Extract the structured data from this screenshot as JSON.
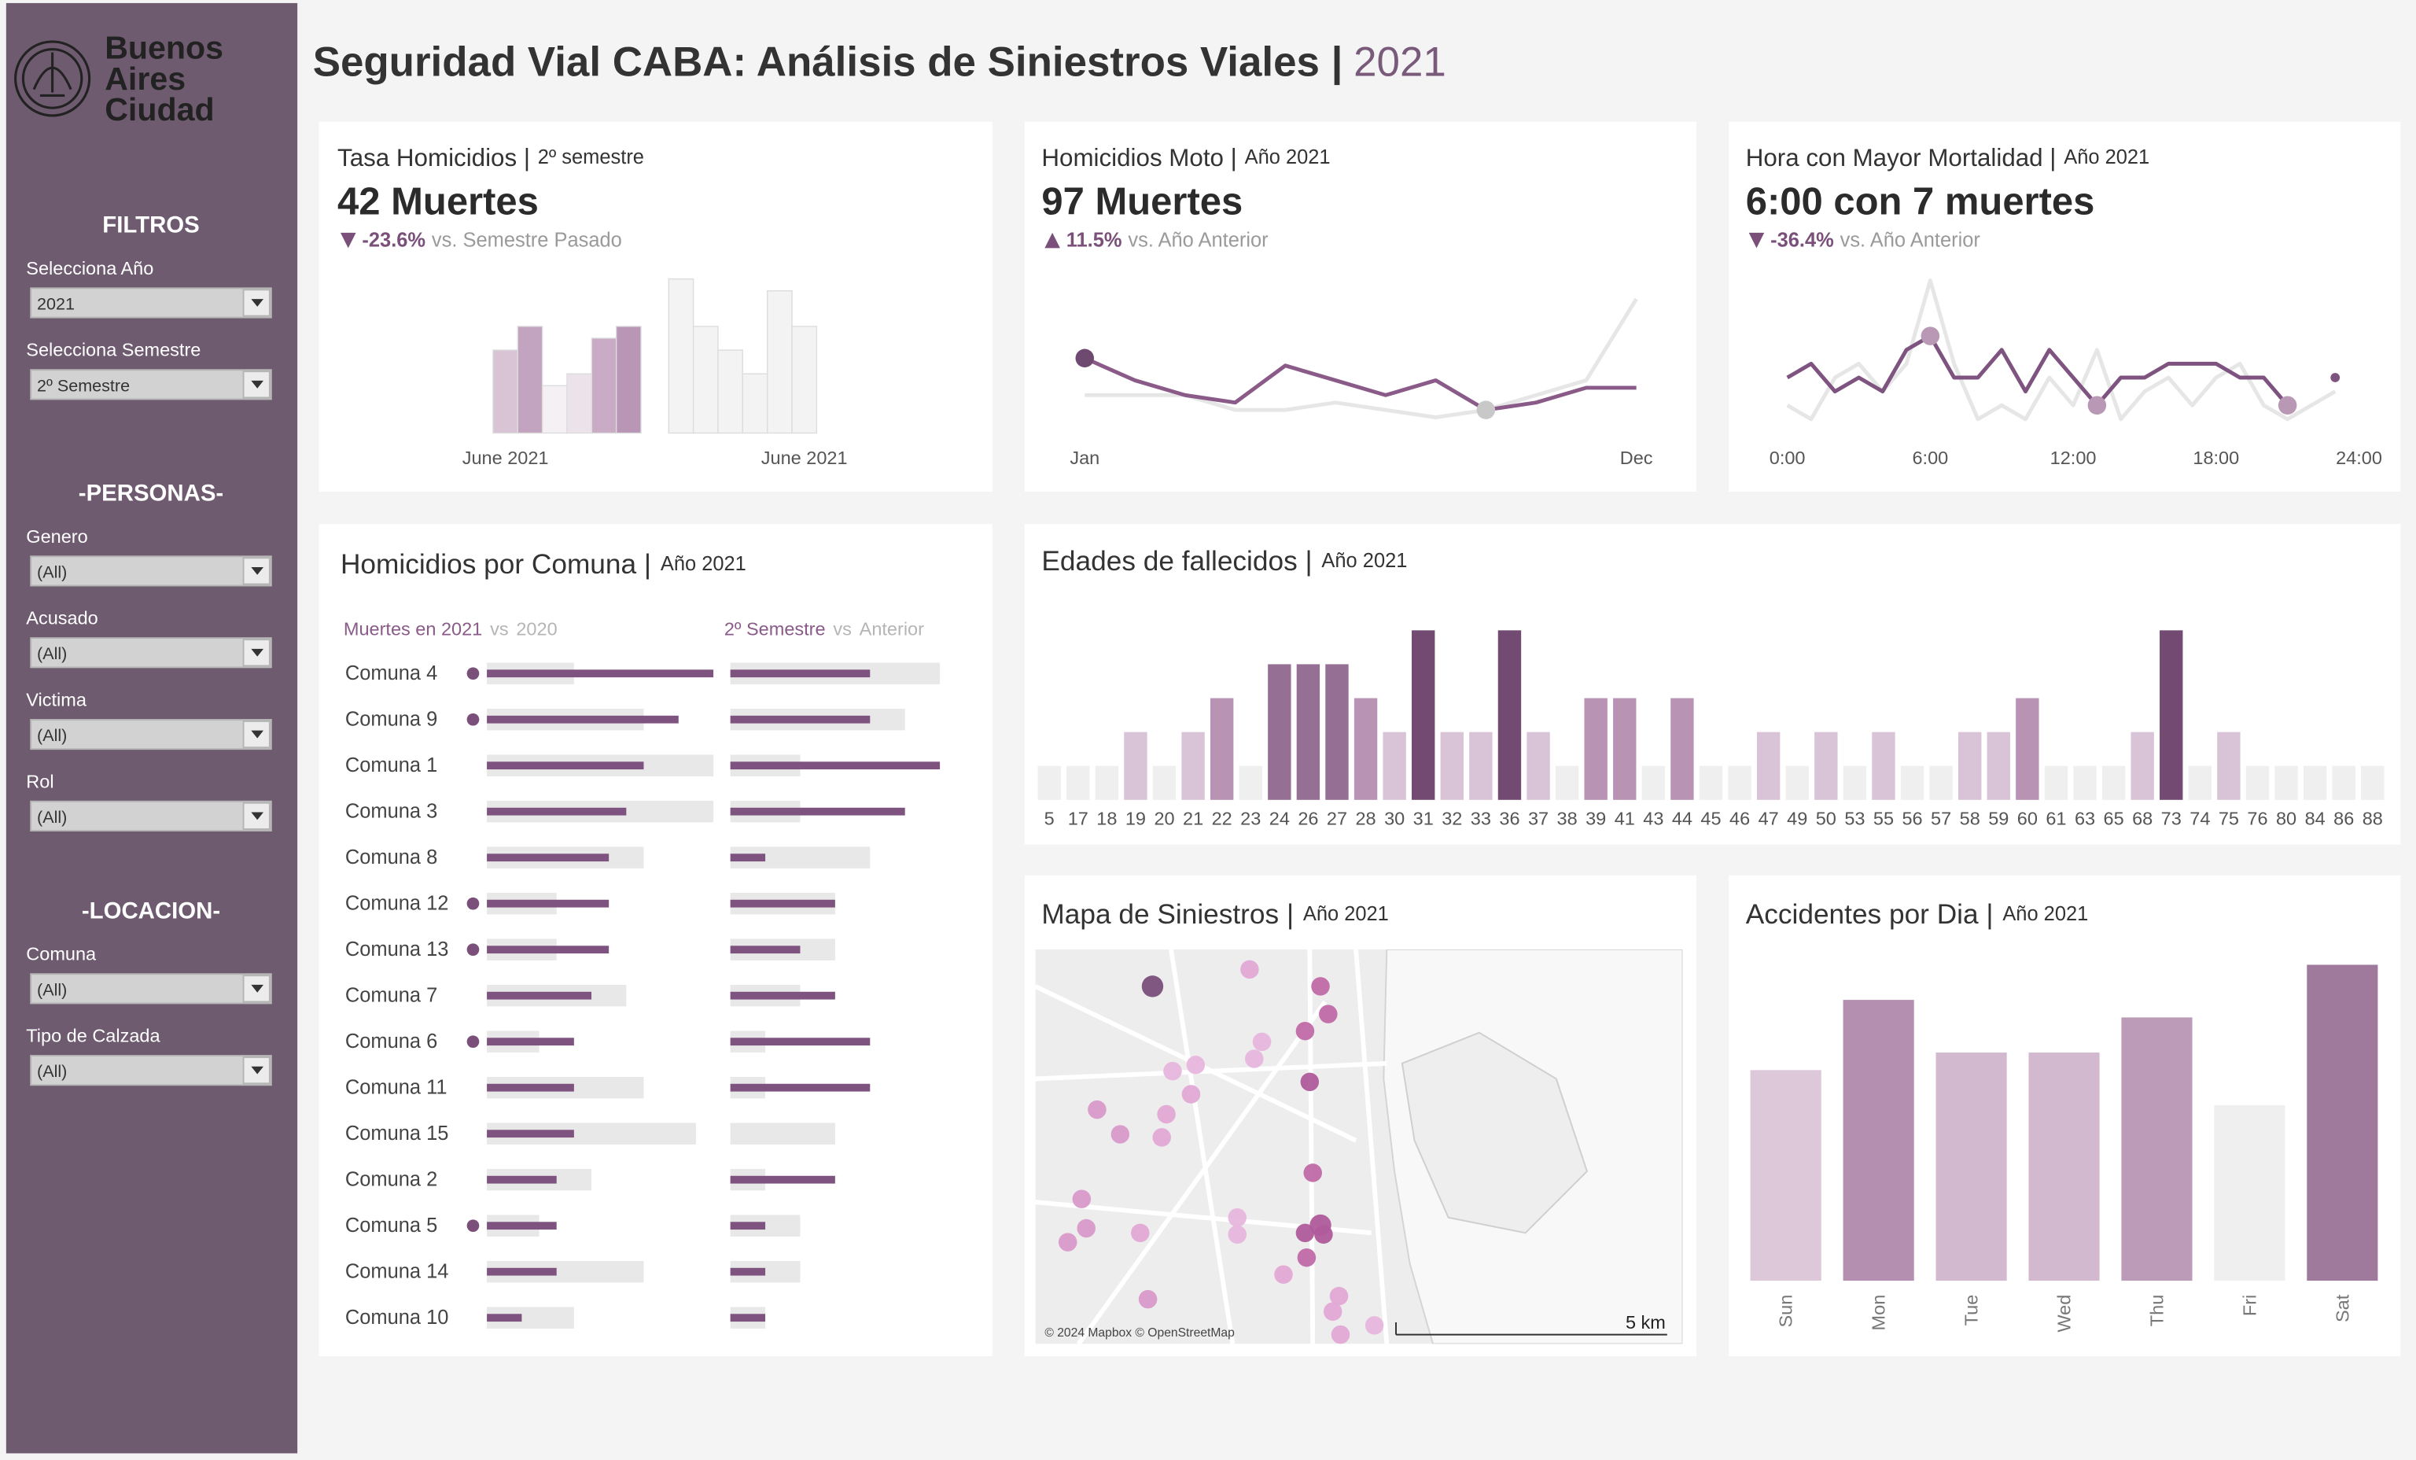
{
  "header": {
    "title": "Seguridad Vial CABA: Análisis de Siniestros Viales |",
    "year": "2021"
  },
  "logo": {
    "lines": [
      "Buenos",
      "Aires",
      "Ciudad"
    ]
  },
  "sidebar": {
    "sections": [
      {
        "title": "FILTROS",
        "filters": [
          {
            "label": "Selecciona Año",
            "value": "2021"
          },
          {
            "label": "Selecciona Semestre",
            "value": "2º Semestre"
          }
        ]
      },
      {
        "title": "-PERSONAS-",
        "filters": [
          {
            "label": "Genero",
            "value": "(All)"
          },
          {
            "label": "Acusado",
            "value": "(All)"
          },
          {
            "label": "Victima",
            "value": "(All)"
          },
          {
            "label": "Rol",
            "value": "(All)"
          }
        ]
      },
      {
        "title": "-LOCACION-",
        "filters": [
          {
            "label": "Comuna",
            "value": "(All)"
          },
          {
            "label": "Tipo de Calzada",
            "value": "(All)"
          }
        ]
      }
    ]
  },
  "kpis": [
    {
      "title": "Tasa Homicidios |",
      "subtitle": "2º semestre",
      "value": "42 Muertes",
      "trend": "down",
      "change": "-23.6%",
      "comparison": "vs. Semestre Pasado"
    },
    {
      "title": "Homicidios Moto |",
      "subtitle": "Año 2021",
      "value": "97 Muertes",
      "trend": "up",
      "change": "11.5%",
      "comparison": "vs. Año Anterior"
    },
    {
      "title": "Hora con Mayor Mortalidad |",
      "subtitle": "Año 2021",
      "value": "6:00 con 7 muertes",
      "trend": "down",
      "change": "-36.4%",
      "comparison": "vs. Año Anterior"
    }
  ],
  "chart_data": [
    {
      "type": "bar",
      "categories": [
        "June 2021",
        null,
        null,
        null,
        null,
        null,
        null,
        null,
        null,
        null,
        null,
        "June 2021"
      ],
      "values": [
        7,
        9,
        4,
        5,
        8,
        9,
        13,
        9,
        7,
        5,
        12,
        9
      ],
      "colors": [
        "#d8c4d5",
        "#c3a4c0",
        "#f4f0f3",
        "#ece2ea",
        "#c9abc6",
        "#b995b6",
        "#f3f3f3",
        "#f3f3f3",
        "#f3f3f3",
        "#f3f3f3",
        "#f3f3f3",
        "#f3f3f3"
      ]
    },
    {
      "type": "line",
      "categories": [
        "Jan",
        null,
        null,
        null,
        null,
        null,
        null,
        null,
        null,
        null,
        null,
        "Dec"
      ],
      "series": [
        {
          "color": "#8a5a88",
          "values": [
            12,
            9,
            7,
            6,
            11,
            9,
            7,
            9,
            5,
            6,
            8,
            8
          ]
        },
        {
          "color": "#e6e6e6",
          "values": [
            7,
            7,
            7,
            5,
            5,
            6,
            5,
            4,
            5,
            7,
            9,
            20
          ]
        }
      ]
    },
    {
      "type": "line",
      "x": [
        0,
        1,
        2,
        3,
        4,
        5,
        6,
        7,
        8,
        9,
        10,
        11,
        12,
        13,
        14,
        15,
        16,
        17,
        18,
        19,
        20,
        21,
        22,
        23
      ],
      "xlim": [
        0,
        24
      ],
      "xticks": [
        {
          "value": 0,
          "label": "0:00"
        },
        {
          "value": 6,
          "label": "6:00"
        },
        {
          "value": 12,
          "label": "12:00"
        },
        {
          "value": 18,
          "label": "18:00"
        },
        {
          "value": 24,
          "label": "24:00"
        }
      ],
      "series": [
        {
          "color": "#7e5380",
          "values": [
            4,
            5,
            3,
            4,
            3,
            6,
            7,
            4,
            4,
            6,
            3,
            6,
            4,
            2,
            4,
            4,
            5,
            5,
            5,
            4,
            4,
            2,
            null,
            4
          ]
        },
        {
          "color": "#e6e6e6",
          "values": [
            2,
            1,
            4,
            5,
            3,
            5,
            11,
            5,
            1,
            2,
            1,
            4,
            2,
            6,
            1,
            3,
            4,
            2,
            4,
            5,
            2,
            1,
            2,
            3
          ]
        }
      ]
    },
    {
      "type": "hbar",
      "title": "Homicidios por Comuna |",
      "subtitle": "Año 2021",
      "categories": [
        "Comuna 4",
        "Comuna 9",
        "Comuna 1",
        "Comuna 3",
        "Comuna 8",
        "Comuna 12",
        "Comuna 13",
        "Comuna 7",
        "Comuna 6",
        "Comuna 11",
        "Comuna 15",
        "Comuna 2",
        "Comuna 5",
        "Comuna 14",
        "Comuna 10"
      ],
      "panels": [
        {
          "separator": "vs",
          "series": [
            {
              "name": "Muertes en 2021",
              "color": "#7e5380",
              "values": [
                13,
                11,
                9,
                8,
                7,
                7,
                7,
                6,
                5,
                5,
                5,
                4,
                4,
                4,
                2
              ]
            },
            {
              "name": "2020",
              "color": "#e8e8e8",
              "values": [
                5,
                9,
                13,
                13,
                9,
                4,
                4,
                8,
                3,
                9,
                12,
                6,
                3,
                9,
                5
              ]
            }
          ]
        },
        {
          "separator": "vs",
          "series": [
            {
              "name": "2º Semestre",
              "color": "#7e5380",
              "values": [
                4,
                4,
                6,
                5,
                1,
                3,
                2,
                3,
                4,
                4,
                0,
                3,
                1,
                1,
                1
              ]
            },
            {
              "name": "Anterior",
              "color": "#e8e8e8",
              "values": [
                6,
                5,
                2,
                2,
                4,
                3,
                3,
                2,
                1,
                1,
                3,
                1,
                2,
                2,
                1
              ]
            }
          ]
        }
      ]
    },
    {
      "type": "bar",
      "title": "Edades de fallecidos |",
      "subtitle": "Año 2021",
      "categories": [
        "5",
        "17",
        "18",
        "19",
        "20",
        "21",
        "22",
        "23",
        "24",
        "26",
        "27",
        "28",
        "30",
        "31",
        "32",
        "33",
        "36",
        "37",
        "38",
        "39",
        "41",
        "43",
        "44",
        "45",
        "46",
        "47",
        "49",
        "50",
        "53",
        "55",
        "56",
        "57",
        "58",
        "59",
        "60",
        "61",
        "63",
        "65",
        "68",
        "73",
        "74",
        "75",
        "76",
        "80",
        "84",
        "86",
        "88"
      ],
      "values": [
        1,
        1,
        1,
        2,
        1,
        2,
        3,
        1,
        4,
        4,
        4,
        3,
        2,
        5,
        2,
        2,
        5,
        2,
        1,
        3,
        3,
        1,
        3,
        1,
        1,
        2,
        1,
        2,
        1,
        2,
        1,
        1,
        2,
        2,
        3,
        1,
        1,
        1,
        2,
        5,
        1,
        2,
        1,
        1,
        1,
        1,
        1
      ],
      "color_scale": [
        "#efefef",
        "#d9c3d6",
        "#b893b4",
        "#966f94",
        "#734b72"
      ]
    },
    {
      "type": "map",
      "title": "Mapa de Siniestros |",
      "subtitle": "Año 2021",
      "attribution": "© 2024 Mapbox © OpenStreetMap",
      "scale_label": "5 km"
    },
    {
      "type": "bar",
      "title": "Accidentes por Dia |",
      "subtitle": "Año 2021",
      "categories": [
        "Sun",
        "Mon",
        "Tue",
        "Wed",
        "Thu",
        "Fri",
        "Sat"
      ],
      "values": [
        12,
        16,
        13,
        13,
        15,
        10,
        18
      ],
      "colors": [
        "#ddc8da",
        "#b48fb0",
        "#d2b9cf",
        "#d2b9cf",
        "#bc9bb8",
        "#efefef",
        "#9f7a9d"
      ]
    }
  ]
}
